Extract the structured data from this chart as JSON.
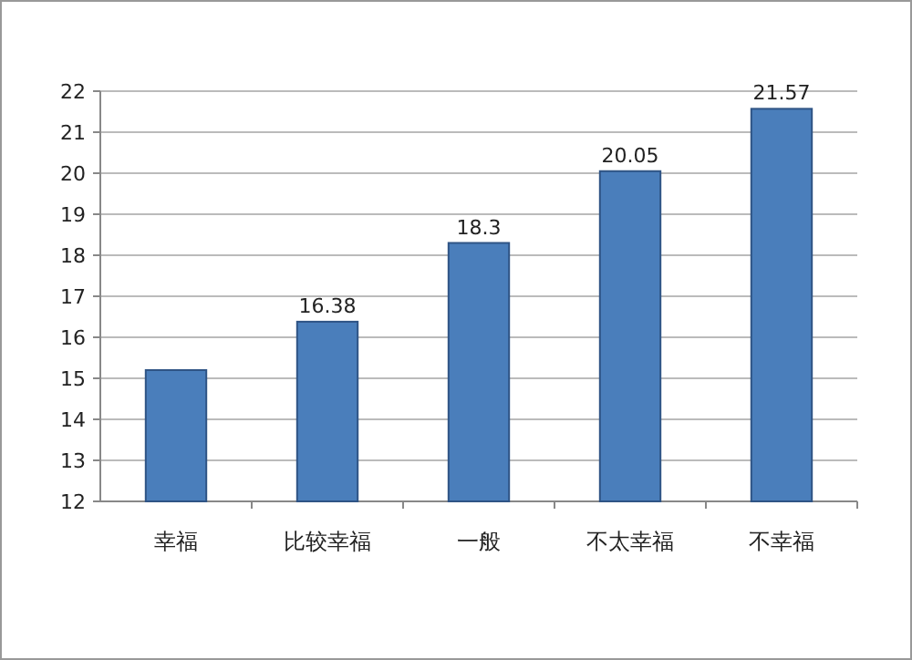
{
  "chart_data": {
    "type": "bar",
    "categories": [
      "幸福",
      "比较幸福",
      "一般",
      "不太幸福",
      "不幸福"
    ],
    "values": [
      15.2,
      16.38,
      18.3,
      20.05,
      21.57
    ],
    "value_labels": [
      null,
      "16.38",
      "18.3",
      "20.05",
      "21.57"
    ],
    "color": "#4a7ebb",
    "ylim": [
      12,
      22
    ],
    "yticks": [
      12,
      13,
      14,
      15,
      16,
      17,
      18,
      19,
      20,
      21,
      22
    ],
    "grid": "y"
  }
}
